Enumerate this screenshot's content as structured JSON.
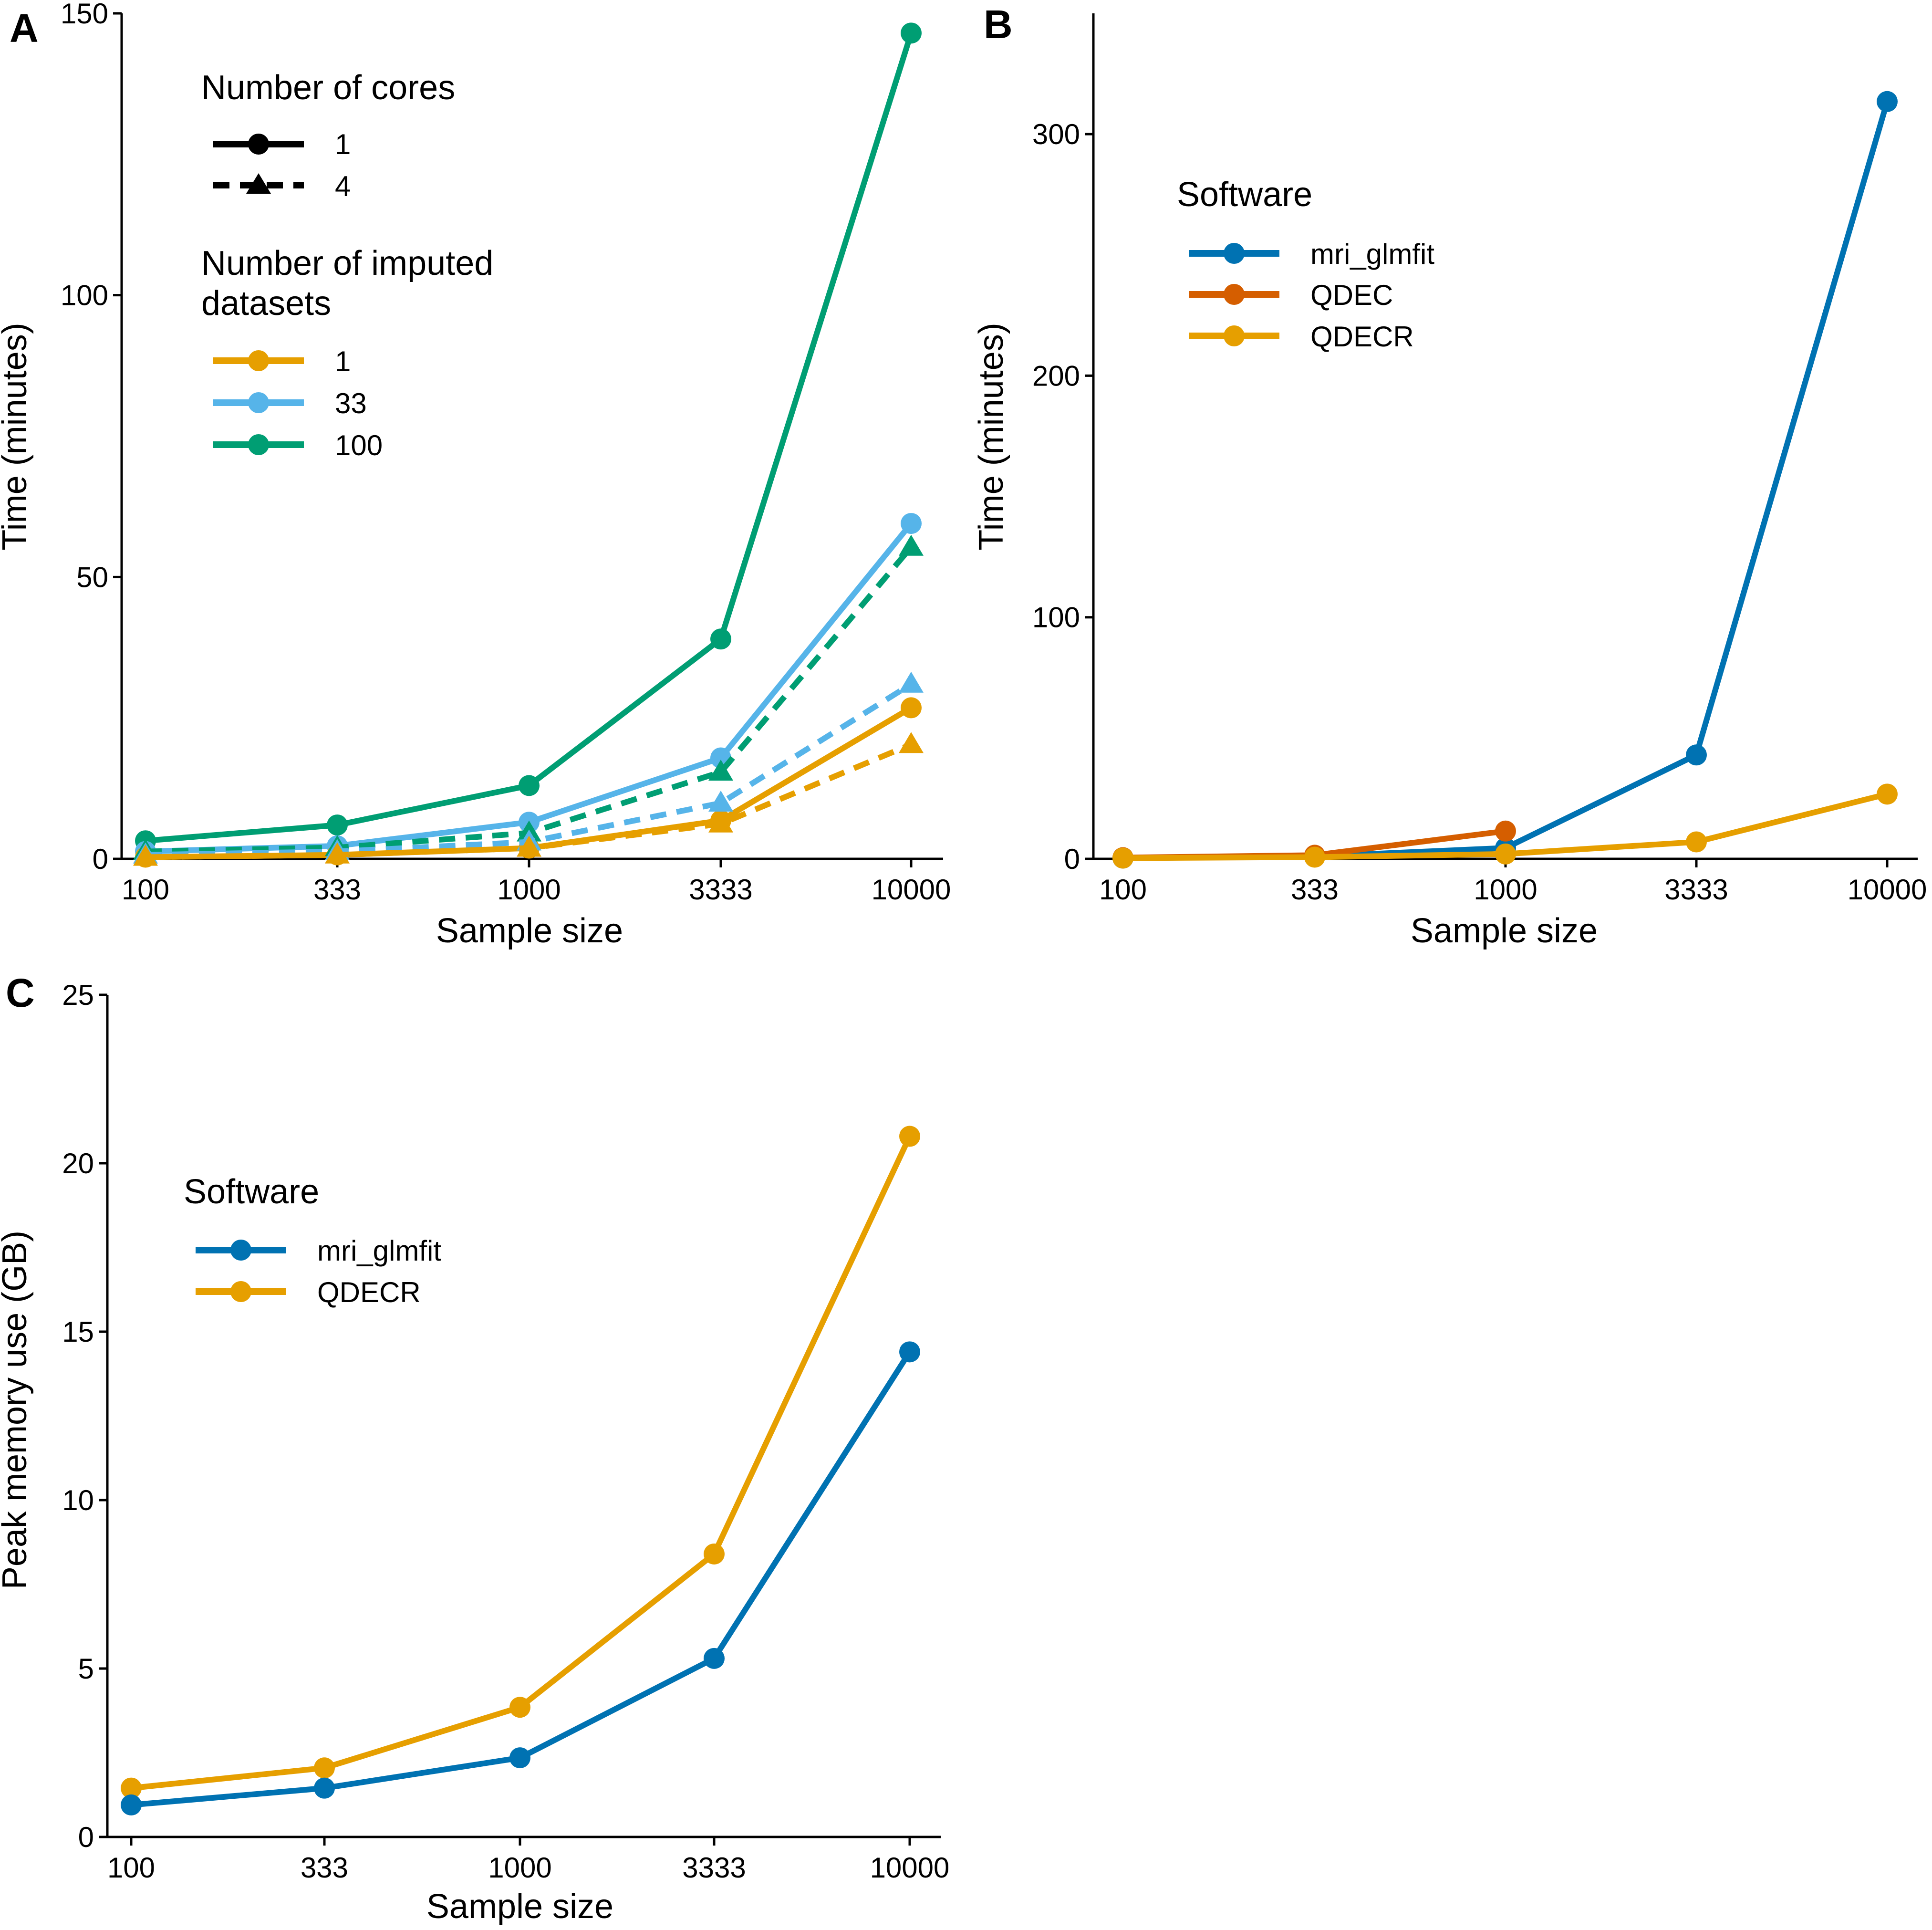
{
  "chart_data": [
    {
      "panel": "A",
      "type": "line",
      "x_categories": [
        "100",
        "333",
        "1000",
        "3333",
        "10000"
      ],
      "xlabel": "Sample size",
      "ylabel": "Time (minutes)",
      "ylim": [
        0,
        150
      ],
      "yticks": [
        0,
        50,
        100,
        150
      ],
      "series": [
        {
          "name": "100 datasets, 1 core",
          "cores": "1",
          "datasets": "100",
          "color": "#009E73",
          "values": [
            3.2,
            6.0,
            13.0,
            39.0,
            146.5
          ]
        },
        {
          "name": "33 datasets, 1 core",
          "cores": "1",
          "datasets": "33",
          "color": "#56B4E9",
          "values": [
            1.3,
            2.3,
            6.5,
            17.9,
            59.5
          ]
        },
        {
          "name": "1 dataset, 1 core",
          "cores": "1",
          "datasets": "1",
          "color": "#E69F00",
          "values": [
            0.3,
            0.7,
            1.9,
            6.8,
            26.8
          ]
        },
        {
          "name": "100 datasets, 4 cores",
          "cores": "4",
          "datasets": "100",
          "color": "#009E73",
          "values": [
            1.3,
            2.0,
            4.6,
            15.4,
            55.3
          ]
        },
        {
          "name": "33 datasets, 4 cores",
          "cores": "4",
          "datasets": "33",
          "color": "#56B4E9",
          "values": [
            0.7,
            1.3,
            3.0,
            9.9,
            31.0
          ]
        },
        {
          "name": "1 dataset, 4 cores",
          "cores": "4",
          "datasets": "1",
          "color": "#E69F00",
          "values": [
            0.3,
            0.7,
            1.9,
            6.2,
            20.3
          ]
        }
      ],
      "legend": {
        "cores_title": "Number of cores",
        "cores_items": [
          "1",
          "4"
        ],
        "datasets_title_line1": "Number of imputed",
        "datasets_title_line2": "datasets",
        "datasets_items": [
          {
            "label": "1",
            "color": "#E69F00"
          },
          {
            "label": "33",
            "color": "#56B4E9"
          },
          {
            "label": "100",
            "color": "#009E73"
          }
        ]
      }
    },
    {
      "panel": "B",
      "type": "line",
      "x_categories": [
        "100",
        "333",
        "1000",
        "3333",
        "10000"
      ],
      "xlabel": "Sample size",
      "ylabel": "Time (minutes)",
      "ylim": [
        0,
        350
      ],
      "yticks": [
        0,
        100,
        200,
        300
      ],
      "series": [
        {
          "name": "mri_glmfit",
          "color": "#0072B2",
          "values": [
            0.3,
            1.0,
            4.5,
            43.0,
            313.5
          ]
        },
        {
          "name": "QDEC",
          "color": "#D55E00",
          "values": [
            0.5,
            1.5,
            11.5,
            null,
            null
          ]
        },
        {
          "name": "QDECR",
          "color": "#E69F00",
          "values": [
            0.3,
            0.7,
            2.0,
            7.0,
            26.8
          ]
        }
      ],
      "legend": {
        "title": "Software",
        "items": [
          {
            "label": "mri_glmfit",
            "color": "#0072B2"
          },
          {
            "label": "QDEC",
            "color": "#D55E00"
          },
          {
            "label": "QDECR",
            "color": "#E69F00"
          }
        ]
      }
    },
    {
      "panel": "C",
      "type": "line",
      "x_categories": [
        "100",
        "333",
        "1000",
        "3333",
        "10000"
      ],
      "xlabel": "Sample size",
      "ylabel": "Peak memory use (GB)",
      "ylim": [
        0,
        25
      ],
      "yticks": [
        0,
        5,
        10,
        15,
        20,
        25
      ],
      "series": [
        {
          "name": "QDECR",
          "color": "#E69F00",
          "values": [
            1.45,
            2.05,
            3.85,
            8.4,
            20.8
          ]
        },
        {
          "name": "mri_glmfit",
          "color": "#0072B2",
          "values": [
            0.95,
            1.45,
            2.35,
            5.3,
            14.4
          ]
        }
      ],
      "legend": {
        "title": "Software",
        "items": [
          {
            "label": "mri_glmfit",
            "color": "#0072B2"
          },
          {
            "label": "QDECR",
            "color": "#E69F00"
          }
        ]
      }
    }
  ]
}
